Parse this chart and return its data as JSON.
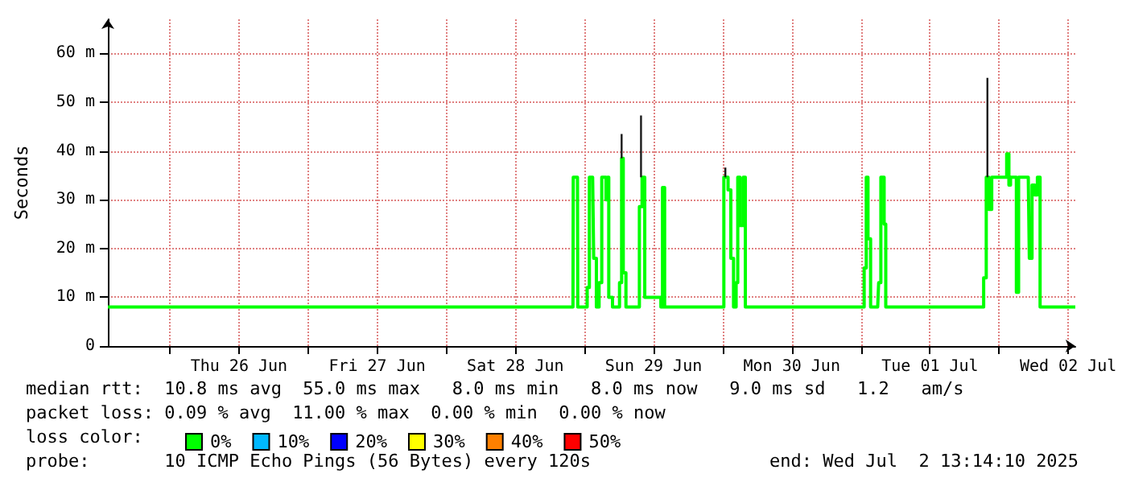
{
  "chart_data": {
    "type": "step",
    "ylabel": "Seconds",
    "xlim": [
      "2025-06-25T13:14",
      "2025-07-02T13:14"
    ],
    "xticks": [
      {
        "value": "2025-06-26T00:00",
        "label": null
      },
      {
        "value": "2025-06-26T12:00",
        "label": "Thu 26 Jun"
      },
      {
        "value": "2025-06-27T00:00",
        "label": null
      },
      {
        "value": "2025-06-27T12:00",
        "label": "Fri 27 Jun"
      },
      {
        "value": "2025-06-28T00:00",
        "label": null
      },
      {
        "value": "2025-06-28T12:00",
        "label": "Sat 28 Jun"
      },
      {
        "value": "2025-06-29T00:00",
        "label": null
      },
      {
        "value": "2025-06-29T12:00",
        "label": "Sun 29 Jun"
      },
      {
        "value": "2025-06-30T00:00",
        "label": null
      },
      {
        "value": "2025-06-30T12:00",
        "label": "Mon 30 Jun"
      },
      {
        "value": "2025-07-01T00:00",
        "label": null
      },
      {
        "value": "2025-07-01T12:00",
        "label": "Tue 01 Jul"
      },
      {
        "value": "2025-07-02T00:00",
        "label": null
      },
      {
        "value": "2025-07-02T12:00",
        "label": "Wed 02 Jul"
      }
    ],
    "ylim": [
      0,
      67
    ],
    "yticks": [
      0,
      {
        "value": 10,
        "label": "10 m"
      },
      {
        "value": 20,
        "label": "20 m"
      },
      {
        "value": 30,
        "label": "30 m"
      },
      {
        "value": 40,
        "label": "40 m"
      },
      {
        "value": 50,
        "label": "50 m"
      },
      {
        "value": 60,
        "label": "60 m"
      }
    ],
    "grid": true,
    "legend": "bottom",
    "marker": "none",
    "line_style": "solid",
    "series": [
      {
        "type": "line",
        "color": "#1a1a1a",
        "x": [
          "2025-06-29T06:27",
          "2025-06-29T06:27",
          "2025-06-29T06:28",
          "2025-06-29T09:49",
          "2025-06-29T09:49",
          "2025-06-29T09:50",
          "2025-06-30T00:28",
          "2025-06-30T00:28",
          "2025-06-30T00:29",
          "2025-07-01T21:58",
          "2025-07-01T21:58"
        ],
        "values": [
          38.5,
          43.5,
          null,
          34.6,
          47.3,
          null,
          34.6,
          36.6,
          null,
          34.6,
          55
        ]
      },
      {
        "name": "0%",
        "color": "#00ff00",
        "x": [
          "2025-06-25T13:14",
          "2025-06-28T22:00",
          "2025-06-28T22:03",
          "2025-06-28T22:47",
          "2025-06-28T22:50",
          "2025-06-29T00:28",
          "2025-06-29T00:51",
          "2025-06-29T01:25",
          "2025-06-29T01:36",
          "2025-06-29T02:04",
          "2025-06-29T02:32",
          "2025-06-29T03:00",
          "2025-06-29T03:28",
          "2025-06-29T03:44",
          "2025-06-29T04:01",
          "2025-06-29T04:13",
          "2025-06-29T04:52",
          "2025-06-29T06:05",
          "2025-06-29T06:27",
          "2025-06-29T06:44",
          "2025-06-29T07:12",
          "2025-06-29T09:32",
          "2025-06-29T10:00",
          "2025-06-29T10:28",
          "2025-06-29T13:16",
          "2025-06-29T13:33",
          "2025-06-29T13:55",
          "2025-06-30T00:12",
          "2025-06-30T00:56",
          "2025-06-30T01:25",
          "2025-06-30T01:53",
          "2025-06-30T02:20",
          "2025-06-30T02:37",
          "2025-06-30T03:00",
          "2025-06-30T03:34",
          "2025-06-30T03:56",
          "2025-07-01T00:17",
          "2025-07-01T00:34",
          "2025-07-01T00:56",
          "2025-07-01T01:14",
          "2025-07-01T01:41",
          "2025-07-01T02:55",
          "2025-07-01T03:05",
          "2025-07-01T03:28",
          "2025-07-01T04:02",
          "2025-07-01T04:19",
          "2025-07-01T20:50",
          "2025-07-01T21:19",
          "2025-07-01T21:46",
          "2025-07-01T22:14",
          "2025-07-01T22:43",
          "2025-07-02T01:02",
          "2025-07-02T01:19",
          "2025-07-02T01:42",
          "2025-07-02T01:59",
          "2025-07-02T02:38",
          "2025-07-02T03:00",
          "2025-07-02T03:23",
          "2025-07-02T05:04",
          "2025-07-02T05:15",
          "2025-07-02T05:43",
          "2025-07-02T06:11",
          "2025-07-02T06:39",
          "2025-07-02T07:07",
          "2025-07-02T13:14"
        ],
        "values": [
          8,
          8,
          34.6,
          34.6,
          8,
          12,
          34.6,
          34.6,
          18,
          8,
          13,
          34.6,
          34.6,
          30,
          34.6,
          10,
          8,
          13,
          38.5,
          15,
          8,
          28.6,
          34.6,
          10,
          8,
          32.5,
          8,
          34.6,
          32,
          18,
          8,
          13,
          34.6,
          24.7,
          34.6,
          8,
          8,
          16,
          34.6,
          22,
          8,
          8,
          13,
          34.6,
          25,
          8,
          8,
          14,
          34.6,
          28,
          34.6,
          34.6,
          39.4,
          33,
          34.6,
          34.6,
          11,
          34.6,
          34.6,
          18,
          33,
          31,
          34.6,
          8,
          8
        ]
      },
      {
        "name": "10%",
        "color": "#00b8ff"
      },
      {
        "name": "20%",
        "color": "#0000ff"
      },
      {
        "name": "30%",
        "color": "#ffff00"
      },
      {
        "name": "40%",
        "color": "#ff8000"
      },
      {
        "name": "50%",
        "color": "#ff0000"
      }
    ],
    "annotations": [
      "median rtt:  10.8 ms avg  55.0 ms max   8.0 ms min   8.0 ms now   9.0 ms sd   1.2   am/s",
      "packet loss: 0.09 % avg  11.00 % max  0.00 % min  0.00 % now",
      "loss color:",
      "probe:       10 ICMP Echo Pings (56 Bytes) every 120s",
      "end: Wed Jul  2 13:14:10 2025"
    ]
  }
}
